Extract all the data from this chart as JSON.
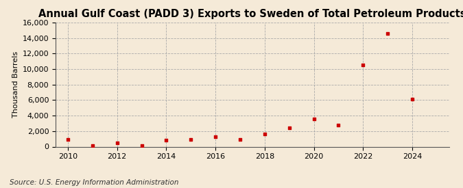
{
  "title": "Annual Gulf Coast (PADD 3) Exports to Sweden of Total Petroleum Products",
  "ylabel": "Thousand Barrels",
  "source": "Source: U.S. Energy Information Administration",
  "background_color": "#f5ead8",
  "plot_background_color": "#f5ead8",
  "marker_color": "#cc0000",
  "years": [
    2010,
    2011,
    2012,
    2013,
    2014,
    2015,
    2016,
    2017,
    2018,
    2019,
    2020,
    2021,
    2022,
    2023,
    2024
  ],
  "values": [
    900,
    100,
    500,
    100,
    800,
    900,
    1300,
    900,
    1600,
    2400,
    3600,
    2800,
    10500,
    14600,
    6100
  ],
  "ylim": [
    0,
    16000
  ],
  "yticks": [
    0,
    2000,
    4000,
    6000,
    8000,
    10000,
    12000,
    14000,
    16000
  ],
  "xlim": [
    2009.5,
    2025.5
  ],
  "xticks": [
    2010,
    2012,
    2014,
    2016,
    2018,
    2020,
    2022,
    2024
  ],
  "title_fontsize": 10.5,
  "axis_fontsize": 8,
  "source_fontsize": 7.5
}
